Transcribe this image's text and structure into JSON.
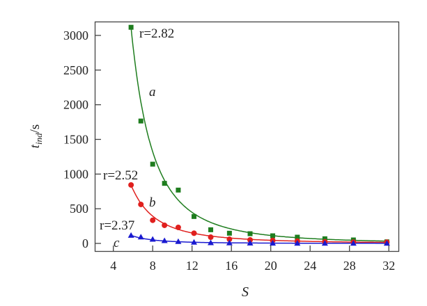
{
  "chart_data": {
    "type": "scatter",
    "xlabel": "S",
    "ylabel": {
      "main": "t",
      "sub": "ind",
      "unit": "/s"
    },
    "xlim": [
      2,
      33
    ],
    "ylim": [
      -150,
      3250
    ],
    "xticks": [
      4,
      8,
      12,
      16,
      20,
      24,
      28,
      32
    ],
    "yticks": [
      0,
      500,
      1000,
      1500,
      2000,
      2500,
      3000
    ],
    "grid": false,
    "series": [
      {
        "name": "a",
        "annotation": "r=2.82",
        "marker": "square",
        "color": "#1e7d1e",
        "x": [
          5.8,
          6.8,
          8.0,
          9.2,
          10.6,
          12.2,
          13.9,
          15.8,
          17.9,
          20.2,
          22.7,
          25.5,
          28.4,
          31.8
        ],
        "y": [
          3117,
          1765,
          1143,
          866,
          769,
          388,
          197,
          147,
          140,
          110,
          90,
          67,
          50,
          23
        ]
      },
      {
        "name": "b",
        "annotation": "r=2.52",
        "marker": "circle",
        "color": "#e0201e",
        "x": [
          5.8,
          6.8,
          8.0,
          9.2,
          10.6,
          12.2,
          13.9,
          15.8,
          17.9,
          20.2,
          22.7,
          25.5,
          28.4,
          31.8
        ],
        "y": [
          843,
          562,
          334,
          261,
          231,
          147,
          90,
          60,
          50,
          43,
          33,
          23,
          17,
          17
        ]
      },
      {
        "name": "c",
        "annotation": "r=2.37",
        "marker": "triangle",
        "color": "#1a1ad0",
        "x": [
          5.8,
          6.8,
          8.0,
          9.2,
          10.6,
          12.2,
          13.9,
          15.8,
          17.9,
          20.2,
          22.7,
          25.5,
          28.4,
          31.8
        ],
        "y": [
          117,
          93,
          60,
          40,
          27,
          17,
          10,
          7,
          5,
          4,
          3,
          3,
          2,
          2
        ]
      }
    ]
  }
}
